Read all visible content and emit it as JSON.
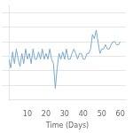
{
  "chart_data": {
    "type": "line",
    "xlabel": "Time (Days)",
    "x": [
      0,
      1,
      2,
      3,
      4,
      5,
      6,
      7,
      8,
      9,
      10,
      11,
      12,
      13,
      14,
      15,
      16,
      17,
      18,
      19,
      20,
      21,
      22,
      23,
      24,
      25,
      26,
      27,
      28,
      29,
      30,
      31,
      32,
      33,
      34,
      35,
      36,
      37,
      38,
      39,
      40,
      41,
      42,
      43,
      44,
      45,
      46,
      47,
      48,
      49,
      50,
      51,
      52,
      53,
      54,
      55,
      56,
      57,
      58,
      59,
      60
    ],
    "values": [
      5.8,
      5.2,
      6.3,
      5.5,
      6.5,
      5.8,
      5.3,
      6.2,
      5.5,
      6.5,
      5.8,
      6.2,
      5.5,
      6.5,
      5.8,
      5.8,
      6.3,
      5.8,
      6.5,
      5.8,
      6.2,
      5.8,
      6.5,
      5.8,
      5.5,
      3.8,
      5.2,
      6.2,
      5.8,
      6.3,
      5.8,
      6.5,
      5.8,
      5.8,
      6.2,
      6.5,
      6.2,
      5.8,
      6.2,
      6.2,
      5.8,
      5.8,
      6.2,
      6.2,
      6.5,
      7.5,
      7.2,
      7.8,
      7.0,
      6.2,
      6.5,
      6.5,
      6.8,
      6.5,
      6.5,
      6.8,
      7.0,
      7.0,
      6.8,
      6.8,
      7.0
    ],
    "color": "#7aaaca",
    "xlim": [
      0,
      63
    ],
    "ylim": [
      3.0,
      9.5
    ],
    "xticks": [
      10,
      20,
      30,
      40,
      50,
      60
    ],
    "yticks": [
      4,
      5,
      6,
      7,
      8,
      9
    ],
    "grid": "y",
    "tick_labels": "x"
  }
}
